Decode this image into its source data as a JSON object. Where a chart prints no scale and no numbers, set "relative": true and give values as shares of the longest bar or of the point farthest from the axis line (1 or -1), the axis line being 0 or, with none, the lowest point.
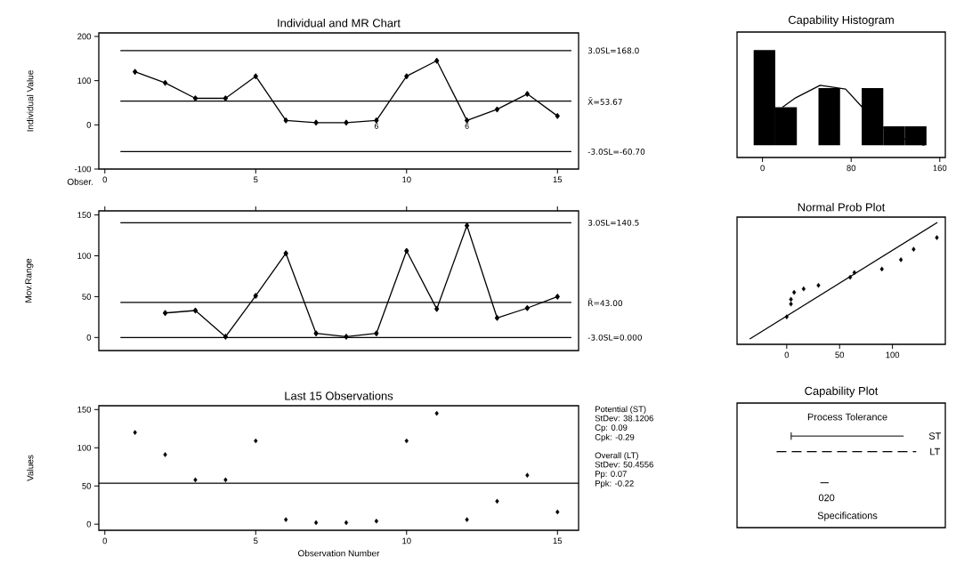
{
  "chart_data": [
    {
      "type": "line",
      "title": "Individual and MR Chart",
      "xlabel": "Obser.",
      "ylabel": "Individual Value",
      "x": [
        1,
        2,
        3,
        4,
        5,
        6,
        7,
        8,
        9,
        10,
        11,
        12,
        13,
        14,
        15
      ],
      "values": [
        120,
        95,
        60,
        60,
        110,
        10,
        5,
        5,
        10,
        110,
        145,
        10,
        35,
        70,
        20
      ],
      "color": "#000000",
      "marker": "diamond",
      "xlim": [
        -0.2,
        15.7
      ],
      "ylim": [
        -100,
        208
      ],
      "xticks": [
        0,
        5,
        10,
        15
      ],
      "yticks": [
        -100,
        0,
        100,
        200
      ],
      "ref_lines": [
        {
          "axis": "y",
          "value": 168.0,
          "label": "3.0SL=168.0"
        },
        {
          "axis": "y",
          "value": 53.67,
          "label": "X̄=53.67"
        },
        {
          "axis": "y",
          "value": -60.7,
          "label": "-3.0SL=-60.70"
        }
      ],
      "annotations": [
        {
          "text": "6",
          "x": 9,
          "y": 10
        },
        {
          "text": "6",
          "x": 12,
          "y": 10
        }
      ]
    },
    {
      "type": "line",
      "ylabel": "Mov.Range",
      "x": [
        2,
        3,
        4,
        5,
        6,
        7,
        8,
        9,
        10,
        11,
        12,
        13,
        14,
        15
      ],
      "values": [
        30,
        33,
        1,
        51,
        103,
        5,
        1,
        5,
        106,
        35,
        137,
        24,
        36,
        50
      ],
      "color": "#000000",
      "marker": "diamond",
      "xlim": [
        -0.2,
        15.7
      ],
      "ylim": [
        -16,
        155
      ],
      "xticks": [
        0,
        5,
        10,
        15
      ],
      "yticks": [
        0,
        50,
        100,
        150
      ],
      "tick_labels": "y",
      "ref_lines": [
        {
          "axis": "y",
          "value": 140.5,
          "label": "3.0SL=140.5"
        },
        {
          "axis": "y",
          "value": 43.0,
          "label": "R̄=43.00"
        },
        {
          "axis": "y",
          "value": 0.0,
          "label": "-3.0SL=0.000"
        }
      ]
    },
    {
      "type": "scatter",
      "title": "Last 15 Observations",
      "xlabel": "Observation Number",
      "ylabel": "Values",
      "x": [
        1,
        2,
        3,
        4,
        5,
        6,
        7,
        8,
        9,
        10,
        11,
        12,
        13,
        14,
        15
      ],
      "values": [
        120,
        91,
        58,
        58,
        109,
        6,
        2,
        2,
        4,
        109,
        145,
        6,
        30,
        64,
        16
      ],
      "color": "#000000",
      "marker": "diamond",
      "xlim": [
        -0.2,
        15.7
      ],
      "ylim": [
        -8,
        155
      ],
      "xticks": [
        0,
        5,
        10,
        15
      ],
      "yticks": [
        0,
        50,
        100,
        150
      ],
      "ref_lines": [
        {
          "axis": "y",
          "value": 53.67
        }
      ],
      "annotations": [
        "Potential (ST)",
        "StDev: 38.1206",
        "Cp: 0.09",
        "Cpk: -0.29",
        "Overall (LT)",
        "StDev: 50.4556",
        "Pp: 0.07",
        "Ppk: -0.22"
      ]
    },
    {
      "type": "histogram",
      "title": "Capability Histogram",
      "relative": true,
      "xlim": [
        -23,
        165
      ],
      "xticks": [
        0,
        80,
        160
      ],
      "tick_labels": "x",
      "series": [
        {
          "type": "histogram",
          "color": "#000000",
          "bins": [
            -8,
            11.5,
            31,
            50.5,
            70,
            89.5,
            109,
            128.5,
            148
          ],
          "values": [
            1,
            0.4,
            0,
            0.6,
            0,
            0.6,
            0.2,
            0.2
          ]
        },
        {
          "type": "line",
          "color": "#000000",
          "x": [
            18,
            30,
            52,
            75,
            90,
            108,
            122,
            146
          ],
          "values": [
            0.4,
            0.5,
            0.63,
            0.59,
            0.4,
            0.19,
            0.09,
            0.0
          ]
        }
      ]
    },
    {
      "type": "scatter",
      "title": "Normal Prob Plot",
      "relative": true,
      "xlim": [
        -47,
        150
      ],
      "xticks": [
        0,
        50,
        100
      ],
      "tick_labels": "x",
      "series": [
        {
          "type": "scatter",
          "color": "#000000",
          "marker": "diamond",
          "x": [
            0,
            4,
            4,
            7,
            16,
            30,
            60,
            64,
            90,
            108,
            120,
            142
          ],
          "values": [
            0.19,
            0.3,
            0.34,
            0.4,
            0.43,
            0.46,
            0.53,
            0.57,
            0.6,
            0.68,
            0.77,
            0.87
          ]
        },
        {
          "type": "line",
          "color": "#000000",
          "x": [
            -35,
            142.5
          ],
          "values": [
            0,
            1
          ]
        }
      ]
    },
    {
      "type": "other",
      "title": "Capability Plot",
      "annotations": [
        "Process Tolerance",
        "ST",
        "LT",
        "020",
        "Specifications"
      ]
    }
  ]
}
